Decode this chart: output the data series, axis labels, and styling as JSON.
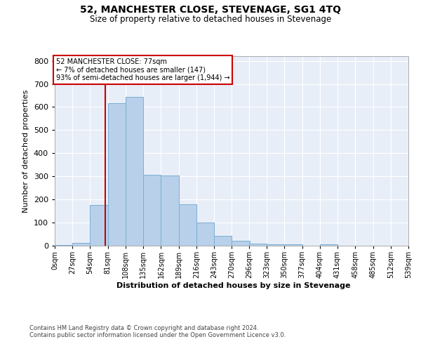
{
  "title": "52, MANCHESTER CLOSE, STEVENAGE, SG1 4TQ",
  "subtitle": "Size of property relative to detached houses in Stevenage",
  "xlabel": "Distribution of detached houses by size in Stevenage",
  "ylabel": "Number of detached properties",
  "property_size": 77,
  "annotation_line0": "52 MANCHESTER CLOSE: 77sqm",
  "annotation_line1": "← 7% of detached houses are smaller (147)",
  "annotation_line2": "93% of semi-detached houses are larger (1,944) →",
  "bar_color": "#b8d0ea",
  "bar_edge_color": "#7aafd4",
  "vline_color": "#cc0000",
  "bg_color": "#e8eef8",
  "footer_line1": "Contains HM Land Registry data © Crown copyright and database right 2024.",
  "footer_line2": "Contains public sector information licensed under the Open Government Licence v3.0.",
  "bin_edges": [
    0,
    27,
    54,
    81,
    108,
    135,
    162,
    189,
    216,
    243,
    270,
    296,
    323,
    350,
    377,
    404,
    431,
    458,
    485,
    512,
    539
  ],
  "bin_counts": [
    4,
    12,
    175,
    618,
    645,
    307,
    305,
    178,
    100,
    43,
    20,
    10,
    5,
    5,
    0,
    5,
    0,
    0,
    0,
    0
  ],
  "ylim": [
    0,
    820
  ],
  "yticks": [
    0,
    100,
    200,
    300,
    400,
    500,
    600,
    700,
    800
  ],
  "tick_labels": [
    "0sqm",
    "27sqm",
    "54sqm",
    "81sqm",
    "108sqm",
    "135sqm",
    "162sqm",
    "189sqm",
    "216sqm",
    "243sqm",
    "270sqm",
    "296sqm",
    "323sqm",
    "350sqm",
    "377sqm",
    "404sqm",
    "431sqm",
    "458sqm",
    "485sqm",
    "512sqm",
    "539sqm"
  ]
}
